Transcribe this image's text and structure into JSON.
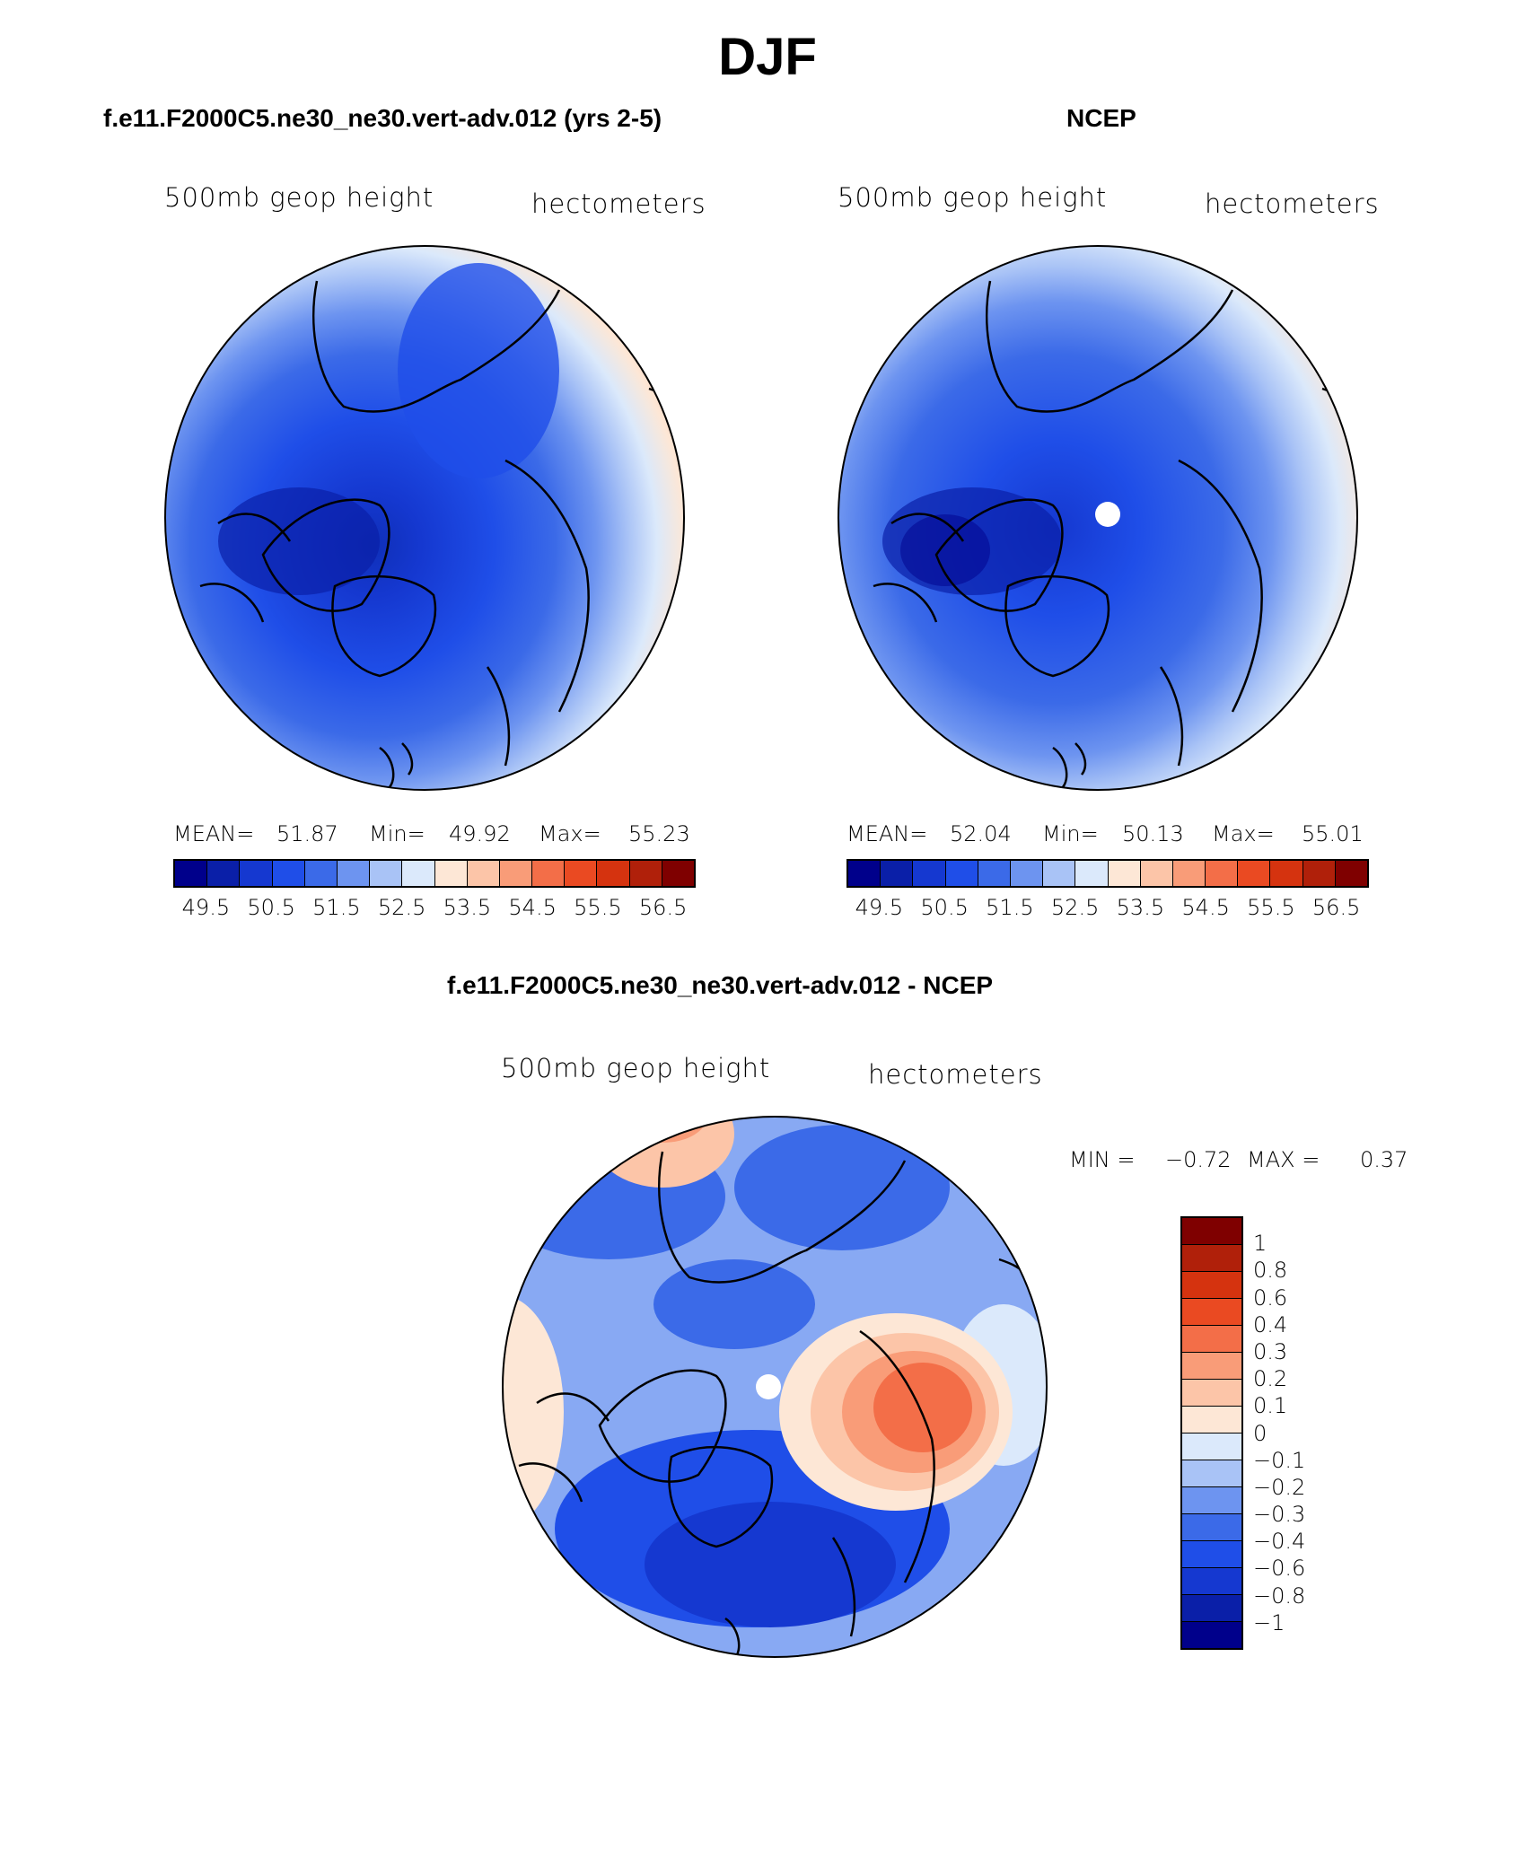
{
  "title": "DJF",
  "panels": [
    {
      "id": "model",
      "title": "f.e11.F2000C5.ne30_ne30.vert-adv.012 (yrs 2-5)",
      "variable": "500mb  geop  height",
      "units": "hectometers",
      "stats": {
        "mean_label": "MEAN=",
        "mean": "51.87",
        "min_label": "Min=",
        "min": "49.92",
        "max_label": "Max=",
        "max": "55.23"
      },
      "colorbar_ticks": [
        "49.5",
        "50.5",
        "51.5",
        "52.5",
        "53.5",
        "54.5",
        "55.5",
        "56.5"
      ]
    },
    {
      "id": "obs",
      "title": "NCEP",
      "variable": "500mb  geop  height",
      "units": "hectometers",
      "stats": {
        "mean_label": "MEAN=",
        "mean": "52.04",
        "min_label": "Min=",
        "min": "50.13",
        "max_label": "Max=",
        "max": "55.01"
      },
      "colorbar_ticks": [
        "49.5",
        "50.5",
        "51.5",
        "52.5",
        "53.5",
        "54.5",
        "55.5",
        "56.5"
      ]
    }
  ],
  "diff_panel": {
    "title": "f.e11.F2000C5.ne30_ne30.vert-adv.012 - NCEP",
    "variable": "500mb  geop  height",
    "units": "hectometers",
    "stats": {
      "min_label": "MIN =",
      "min": "−0.72",
      "max_label": "MAX =",
      "max": "0.37"
    },
    "colorbar_ticks": [
      "1",
      "0.8",
      "0.6",
      "0.4",
      "0.3",
      "0.2",
      "0.1",
      "0",
      "−0.1",
      "−0.2",
      "−0.3",
      "−0.4",
      "−0.6",
      "−0.8",
      "−1"
    ]
  },
  "colors": {
    "abs_scale": [
      "#00008b",
      "#0a1fa8",
      "#1538d0",
      "#1f4ee8",
      "#3b6ae8",
      "#6d94f0",
      "#a9c3f6",
      "#dbe9fb",
      "#fde7d6",
      "#fcc5a8",
      "#f99c78",
      "#f36e48",
      "#ea4a22",
      "#d5330f",
      "#b0200a",
      "#7f0000"
    ],
    "diff_scale": [
      "#7f0000",
      "#b0200a",
      "#d5330f",
      "#ea4a22",
      "#f36e48",
      "#f99c78",
      "#fcc5a8",
      "#fde7d6",
      "#dbe9fb",
      "#a9c3f6",
      "#6d94f0",
      "#3b6ae8",
      "#1f4ee8",
      "#1538d0",
      "#0a1fa8",
      "#00008b"
    ]
  }
}
